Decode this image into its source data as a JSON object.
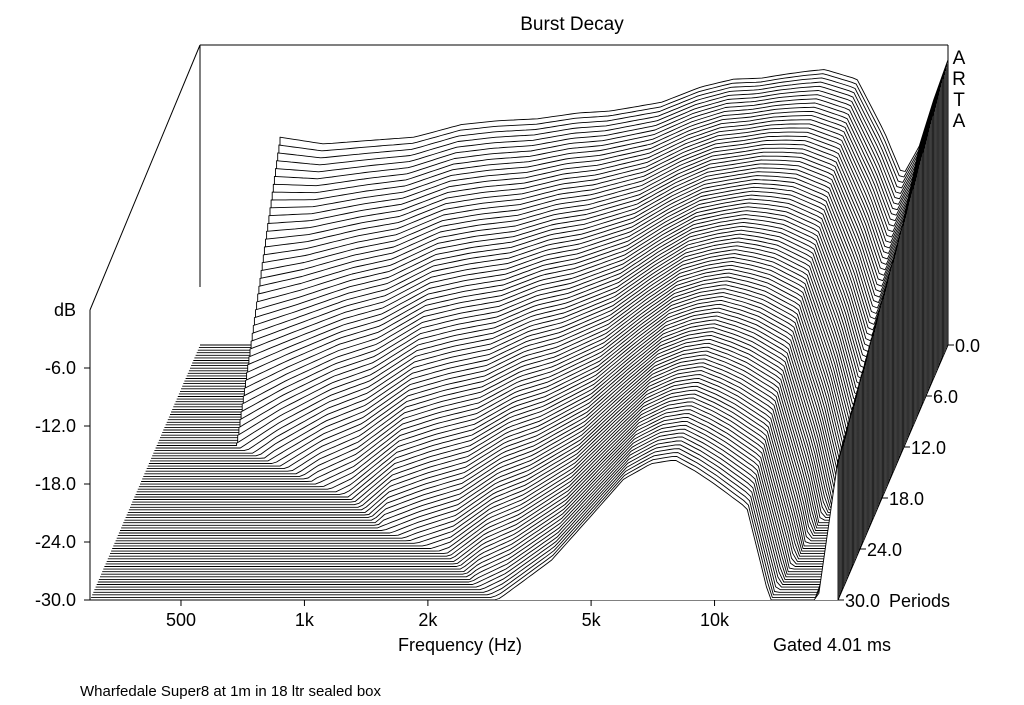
{
  "chart_data": {
    "type": "waterfall",
    "title": "Burst Decay",
    "brand": [
      "A",
      "R",
      "T",
      "A"
    ],
    "xlabel": "Frequency (Hz)",
    "xscale": "log",
    "xlim": [
      300,
      20000
    ],
    "xticks": [
      {
        "value": 500,
        "label": "500"
      },
      {
        "value": 1000,
        "label": "1k"
      },
      {
        "value": 2000,
        "label": "2k"
      },
      {
        "value": 5000,
        "label": "5k"
      },
      {
        "value": 10000,
        "label": "10k"
      }
    ],
    "ylabel": "dB",
    "ylim": [
      -30,
      0
    ],
    "yticks": [
      {
        "value": -6,
        "label": "-6.0"
      },
      {
        "value": -12,
        "label": "-12.0"
      },
      {
        "value": -18,
        "label": "-18.0"
      },
      {
        "value": -24,
        "label": "-24.0"
      },
      {
        "value": -30,
        "label": "-30.0"
      }
    ],
    "zlabel": "Periods",
    "zlim": [
      0,
      30
    ],
    "zticks": [
      {
        "value": 0,
        "label": "0.0"
      },
      {
        "value": 6,
        "label": "6.0"
      },
      {
        "value": 12,
        "label": "12.0"
      },
      {
        "value": 18,
        "label": "18.0"
      },
      {
        "value": 24,
        "label": "24.0"
      },
      {
        "value": 30,
        "label": "30.0"
      }
    ],
    "gate_note": "Gated 4.01 ms",
    "footnote": "Wharfedale Super8 at 1m in 18 ltr sealed box",
    "slice_count": 100,
    "initial_response": {
      "freq": [
        470,
        600,
        800,
        1000,
        1300,
        1600,
        2000,
        2500,
        3000,
        4000,
        5000,
        6000,
        7000,
        8000,
        9000,
        10000,
        12000,
        14000,
        15500,
        17000,
        18500,
        20000
      ],
      "db": [
        -8.5,
        -9.2,
        -8.8,
        -8.5,
        -7.2,
        -6.8,
        -6.6,
        -6.0,
        -5.8,
        -4.9,
        -3.3,
        -2.5,
        -2.4,
        -2.0,
        -1.7,
        -1.5,
        -2.5,
        -8.0,
        -12.5,
        -9.5,
        -4.5,
        -0.5
      ]
    },
    "decay": {
      "freq": [
        470,
        600,
        800,
        1000,
        1300,
        1600,
        2000,
        2500,
        3000,
        4000,
        5000,
        6000,
        7000,
        8000,
        9000,
        10000,
        12000,
        14000,
        15500,
        17000,
        18500,
        20000
      ],
      "fall_db_per_period": [
        1.8,
        1.5,
        1.3,
        1.2,
        1.05,
        1.0,
        0.95,
        0.85,
        0.8,
        0.7,
        0.6,
        0.5,
        0.45,
        0.45,
        0.5,
        0.55,
        0.6,
        0.8,
        1.0,
        0.9,
        0.7,
        0.5
      ]
    },
    "grid": false
  }
}
